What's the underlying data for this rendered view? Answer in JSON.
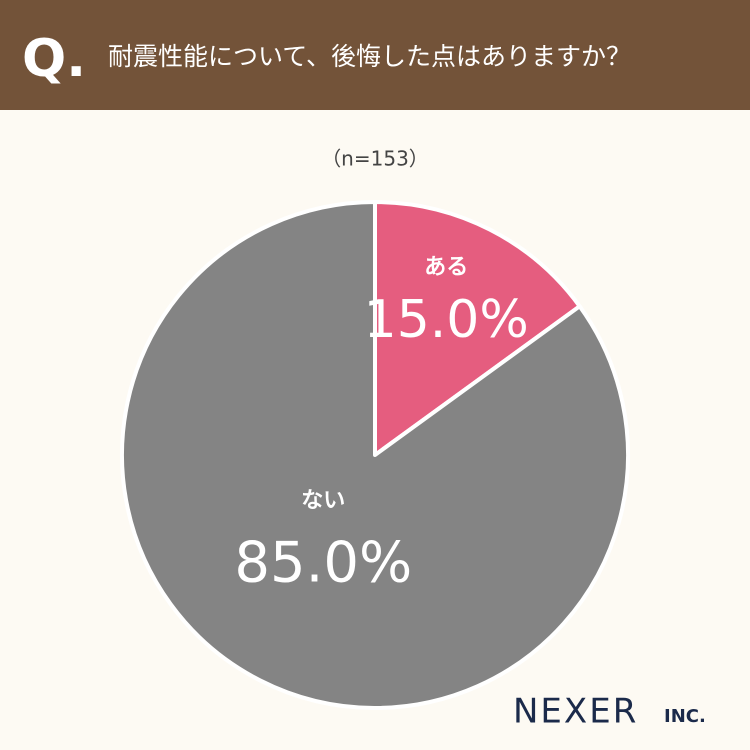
{
  "chart_data": {
    "type": "pie",
    "q_label": "Q.",
    "title": "耐震性能について、後悔した点はありますか？",
    "subtitle": "（n=153）",
    "categories": [
      "ある",
      "ない"
    ],
    "values": [
      15.0,
      85.0
    ],
    "value_labels": [
      "15.0%",
      "85.0%"
    ],
    "colors": [
      "#e55d7f",
      "#848484"
    ],
    "brand": "NEXER",
    "brand_suffix": "INC."
  }
}
